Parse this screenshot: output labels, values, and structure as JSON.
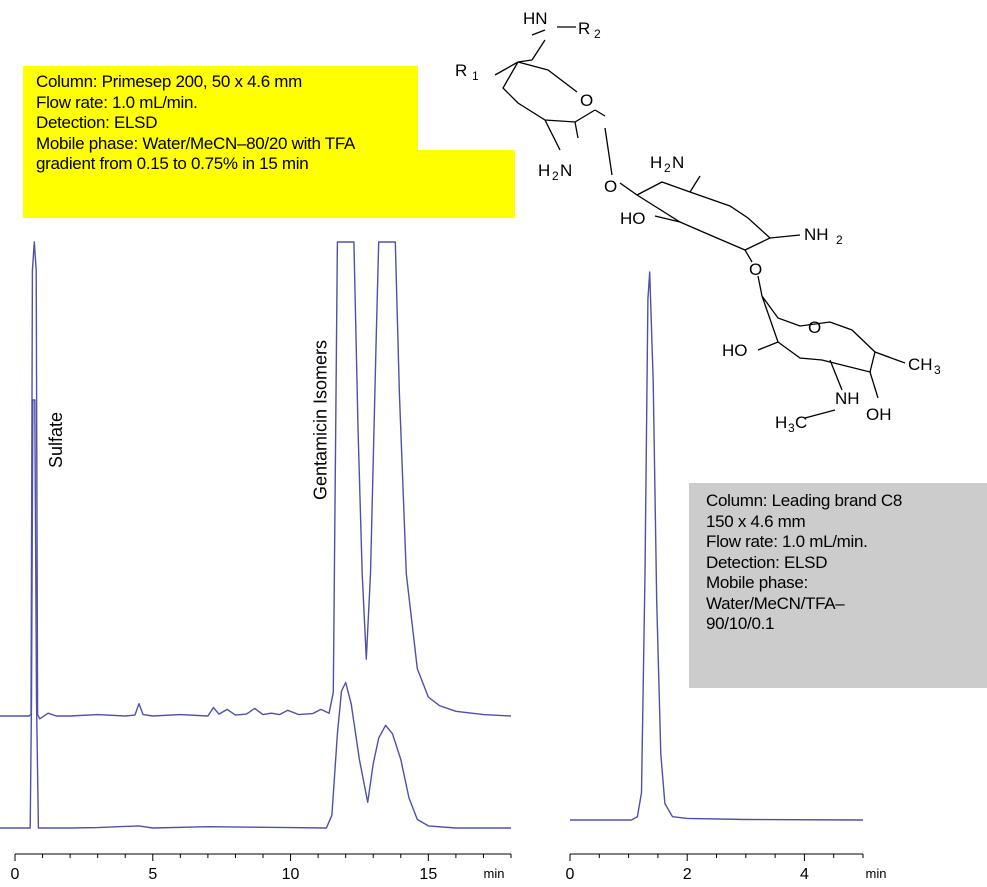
{
  "chart_data": [
    {
      "type": "line",
      "xlabel": "",
      "x_unit_label": "min",
      "xlim": [
        0,
        18
      ],
      "xticks": [
        0,
        5,
        10,
        15
      ],
      "xtick_labels": [
        "0",
        "5",
        "10",
        "15"
      ],
      "ylabel": "",
      "grid": false,
      "legend": "none",
      "annotations": [
        {
          "text": "Sulfate",
          "x": 1.7
        },
        {
          "text": "Gentamicin Isomers",
          "x": 11.3
        }
      ],
      "series": [
        {
          "points": [
            [
              -1,
              0
            ],
            [
              0.5,
              0
            ],
            [
              0.58,
              0.3
            ],
            [
              0.63,
              94
            ],
            [
              0.7,
              100
            ],
            [
              0.77,
              94
            ],
            [
              0.82,
              0.3
            ],
            [
              0.9,
              -0.6
            ],
            [
              1.2,
              0.6
            ],
            [
              1.5,
              0
            ],
            [
              2,
              0
            ],
            [
              3,
              0.3
            ],
            [
              4,
              0
            ],
            [
              4.35,
              0.2
            ],
            [
              4.5,
              2.6
            ],
            [
              4.65,
              0.3
            ],
            [
              5,
              0
            ],
            [
              6,
              0.3
            ],
            [
              7,
              0
            ],
            [
              7.2,
              1.8
            ],
            [
              7.4,
              0.4
            ],
            [
              7.7,
              1.4
            ],
            [
              8,
              0.2
            ],
            [
              8.4,
              0.4
            ],
            [
              8.7,
              1.6
            ],
            [
              9,
              0.3
            ],
            [
              9.3,
              0.6
            ],
            [
              9.6,
              0.3
            ],
            [
              9.9,
              1.2
            ],
            [
              10.3,
              0.3
            ],
            [
              10.8,
              0.5
            ],
            [
              11.1,
              1.4
            ],
            [
              11.4,
              0.6
            ],
            [
              11.55,
              5
            ],
            [
              11.7,
              100
            ],
            [
              12.3,
              100
            ],
            [
              12.45,
              60
            ],
            [
              12.6,
              30
            ],
            [
              12.75,
              12
            ],
            [
              12.9,
              30
            ],
            [
              13.1,
              78
            ],
            [
              13.2,
              100
            ],
            [
              13.8,
              100
            ],
            [
              13.95,
              68
            ],
            [
              14.2,
              30
            ],
            [
              14.6,
              10
            ],
            [
              15,
              4
            ],
            [
              15.4,
              2.2
            ],
            [
              16,
              1
            ],
            [
              17,
              0.3
            ],
            [
              18,
              0
            ]
          ]
        },
        {
          "points": [
            [
              -1,
              0
            ],
            [
              0.55,
              0
            ],
            [
              0.6,
              30
            ],
            [
              0.65,
              100
            ],
            [
              0.72,
              100
            ],
            [
              0.78,
              30
            ],
            [
              0.85,
              0
            ],
            [
              1.2,
              0
            ],
            [
              2,
              0
            ],
            [
              3,
              0.1
            ],
            [
              4.5,
              0.5
            ],
            [
              5,
              0
            ],
            [
              7,
              0.3
            ],
            [
              10,
              0.1
            ],
            [
              11.3,
              0
            ],
            [
              11.5,
              3
            ],
            [
              11.7,
              22
            ],
            [
              11.85,
              32
            ],
            [
              12,
              34
            ],
            [
              12.2,
              29
            ],
            [
              12.5,
              16
            ],
            [
              12.8,
              6
            ],
            [
              13,
              15
            ],
            [
              13.2,
              21
            ],
            [
              13.45,
              24
            ],
            [
              13.7,
              22
            ],
            [
              14,
              16
            ],
            [
              14.3,
              7
            ],
            [
              14.6,
              2
            ],
            [
              15,
              0.5
            ],
            [
              16,
              0
            ],
            [
              18,
              0
            ]
          ]
        }
      ]
    },
    {
      "type": "line",
      "xlabel": "",
      "x_unit_label": "min",
      "xlim": [
        0,
        5
      ],
      "xticks": [
        0,
        2,
        4
      ],
      "xtick_labels": [
        "0",
        "2",
        "4"
      ],
      "ylabel": "",
      "grid": false,
      "legend": "none",
      "series": [
        {
          "points": [
            [
              0,
              0
            ],
            [
              1.05,
              0
            ],
            [
              1.15,
              0.6
            ],
            [
              1.22,
              5
            ],
            [
              1.28,
              45
            ],
            [
              1.33,
              95
            ],
            [
              1.36,
              100
            ],
            [
              1.42,
              80
            ],
            [
              1.48,
              40
            ],
            [
              1.55,
              12
            ],
            [
              1.62,
              3
            ],
            [
              1.75,
              0.6
            ],
            [
              2,
              0.3
            ],
            [
              3,
              0.1
            ],
            [
              5,
              0
            ]
          ]
        }
      ]
    }
  ],
  "notes": {
    "left": [
      "Column: Primesep 200, 50 x 4.6 mm",
      "Flow rate: 1.0 mL/min.",
      "Detection: ELSD",
      "Mobile phase: Water/MeCN–80/20 with TFA",
      "gradient from 0.15 to 0.75% in 15 min"
    ],
    "right": [
      "Column: Leading brand C8",
      "150 x 4.6 mm",
      "Flow rate: 1.0 mL/min.",
      "Detection: ELSD",
      "Mobile phase:",
      "Water/MeCN/TFA–",
      "90/10/0.1"
    ]
  },
  "structure": {
    "labels": [
      "HN",
      "R",
      "2",
      "R",
      "1",
      "O",
      "H",
      "2",
      "N",
      "O",
      "H",
      "2",
      "N",
      "HO",
      "NH",
      "2",
      "O",
      "O",
      "HO",
      "CH",
      "3",
      "NH",
      "H",
      "3",
      "C",
      "OH"
    ]
  },
  "colors": {
    "trace": "#5050a8",
    "axis": "#000000",
    "left_box": "#ffff00",
    "right_box": "#cccccc"
  }
}
